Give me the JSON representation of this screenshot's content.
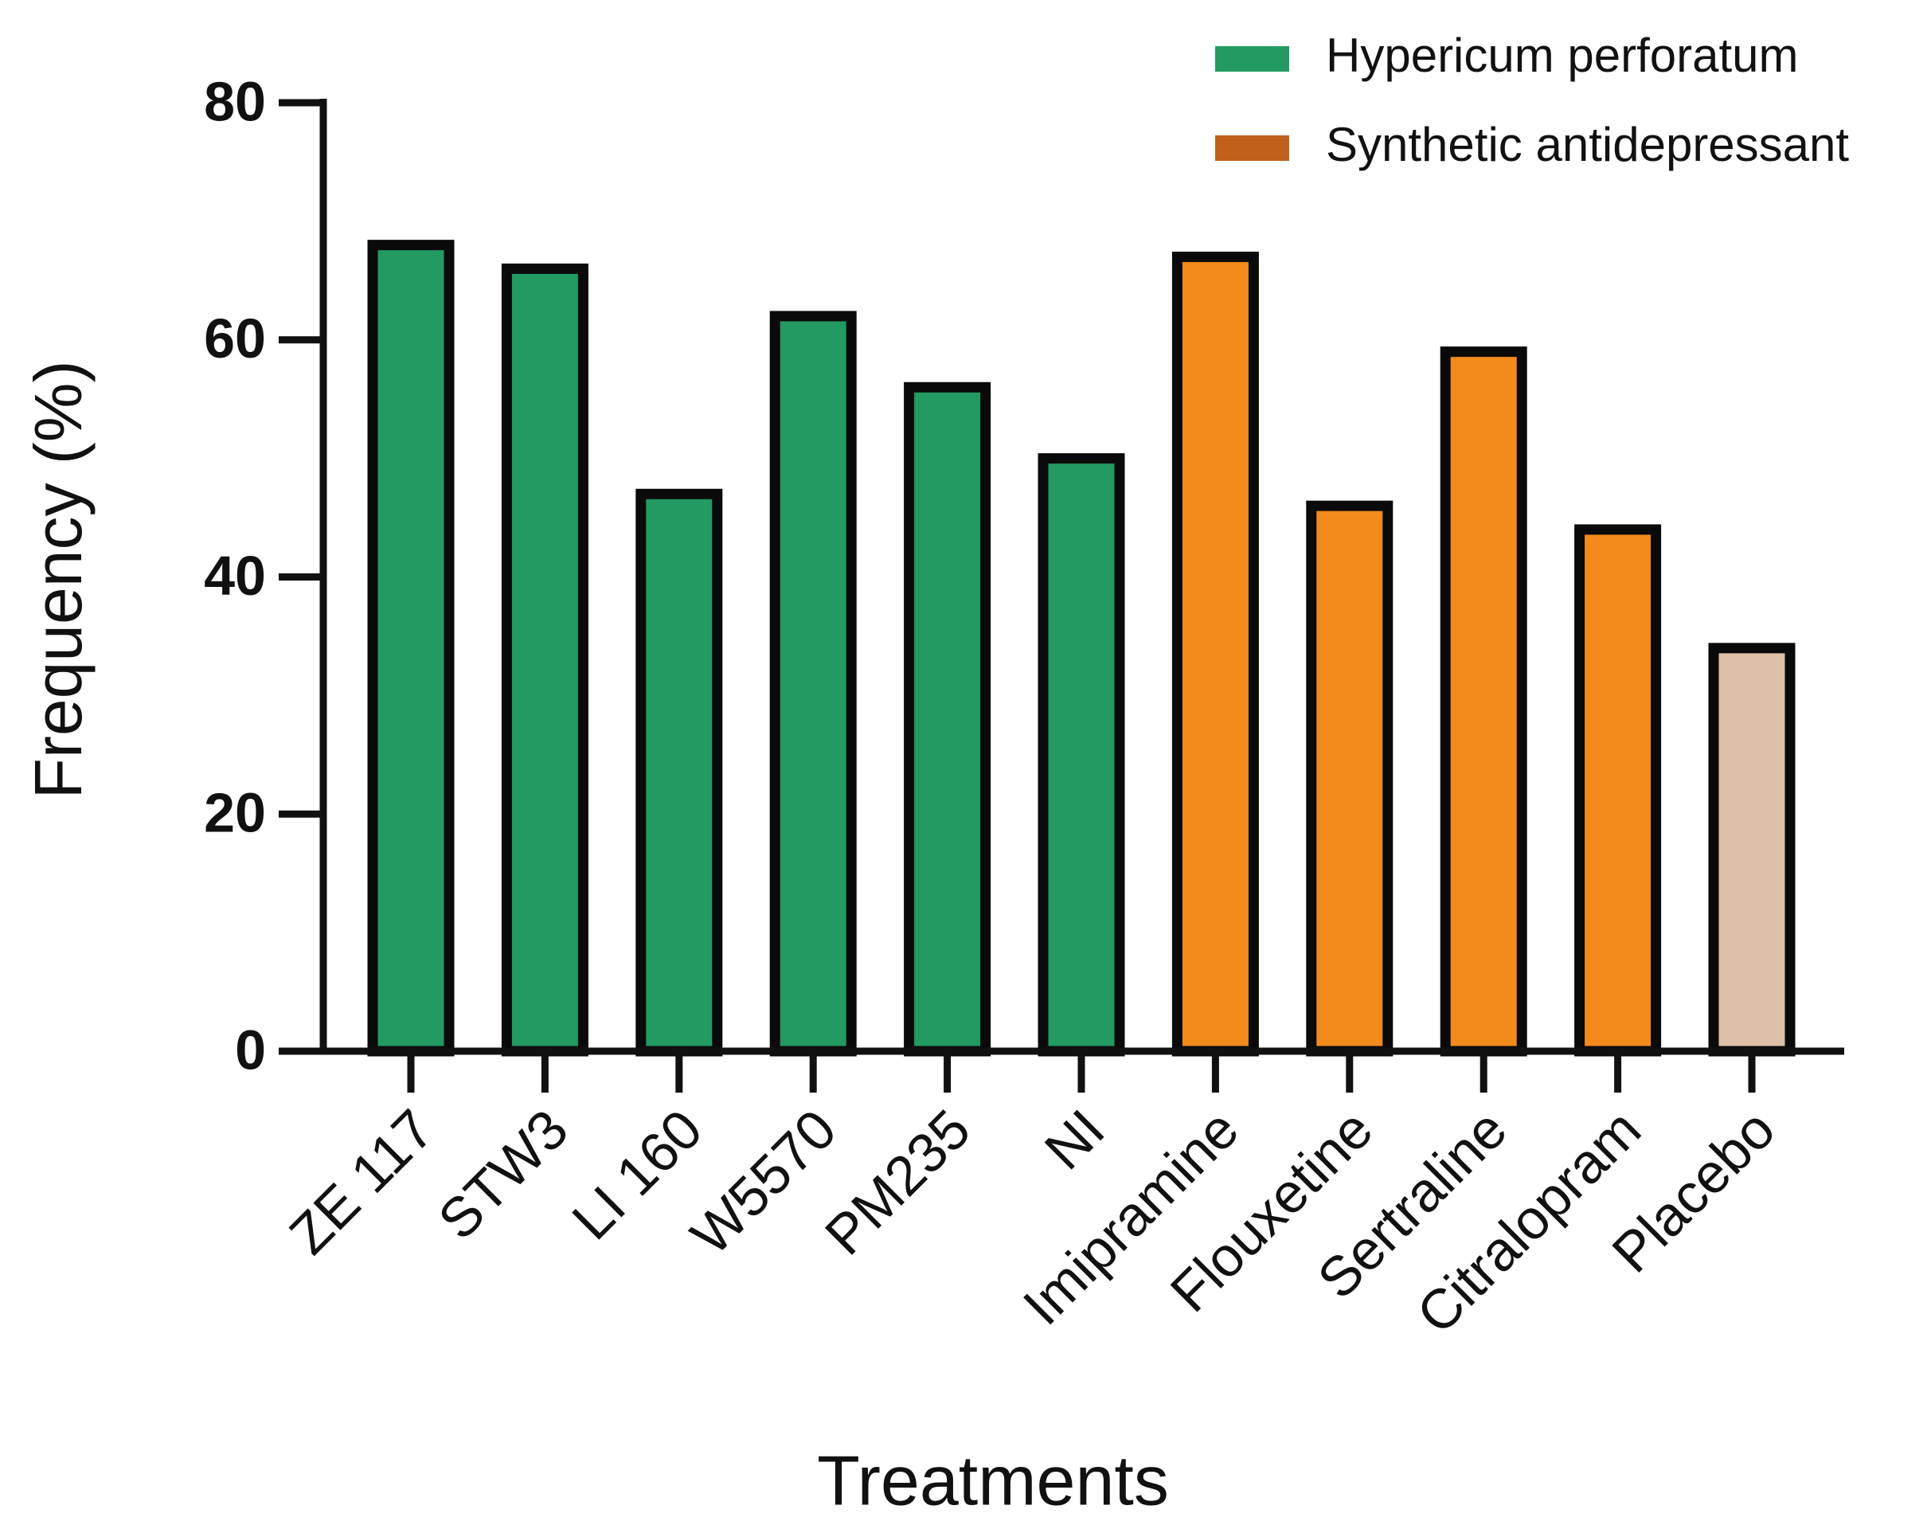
{
  "chart_data": {
    "type": "bar",
    "x_label": "Treatments",
    "y_label": "Frequency (%)",
    "categories": [
      "ZE 117",
      "STW3",
      "LI 160",
      "W5570",
      "PM235",
      "NI",
      "Imipramine",
      "Flouxetine",
      "Sertraline",
      "Citralopram",
      "Placebo"
    ],
    "values": [
      68,
      66,
      47,
      62,
      56,
      50,
      67,
      46,
      59,
      44,
      34
    ],
    "colors": [
      "#229a62",
      "#229a62",
      "#229a62",
      "#229a62",
      "#229a62",
      "#229a62",
      "#f28a1c",
      "#f28a1c",
      "#f28a1c",
      "#f28a1c",
      "#dcc0a8"
    ],
    "legend": [
      {
        "name": "Hypericum perforatum",
        "color": "#229a62"
      },
      {
        "name": "Synthetic antidepressant",
        "color": "#c0601a"
      }
    ],
    "legend_position": "upper right",
    "ylim": [
      0,
      80
    ],
    "yticks": [
      0,
      20,
      40,
      60,
      80
    ],
    "grid": false
  }
}
